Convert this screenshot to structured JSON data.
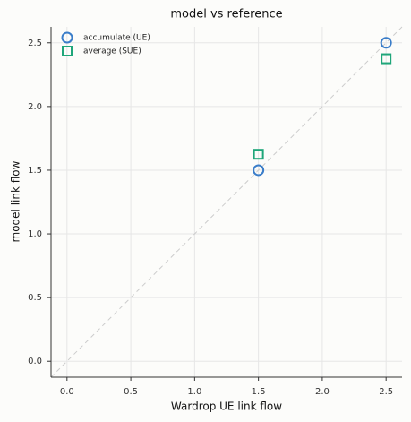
{
  "chart_data": {
    "type": "scatter",
    "title": "model vs reference",
    "x_label": "Wardrop UE link flow",
    "y_label": "model link flow",
    "xlim": [
      -0.125,
      2.625
    ],
    "ylim": [
      -0.125,
      2.625
    ],
    "xticks": [
      {
        "value": 0,
        "label": "0.0"
      },
      0.5,
      {
        "value": 1,
        "label": "1.0"
      },
      1.5,
      {
        "value": 2,
        "label": "2.0"
      },
      2.5
    ],
    "yticks": [
      {
        "value": 0,
        "label": "0.0"
      },
      0.5,
      {
        "value": 1,
        "label": "1.0"
      },
      1.5,
      {
        "value": 2,
        "label": "2.0"
      },
      2.5
    ],
    "grid": true,
    "legend": "upper left",
    "series": [
      {
        "name": "accumulate (UE)",
        "color": "#3a7dc9",
        "marker": "circle",
        "x": [
          1.5,
          2.5
        ],
        "values": [
          1.5,
          2.5
        ]
      },
      {
        "name": "average (SUE)",
        "color": "#1fa67a",
        "marker": "square",
        "x": [
          1.5,
          2.5
        ],
        "values": [
          1.625,
          2.375
        ]
      }
    ]
  }
}
